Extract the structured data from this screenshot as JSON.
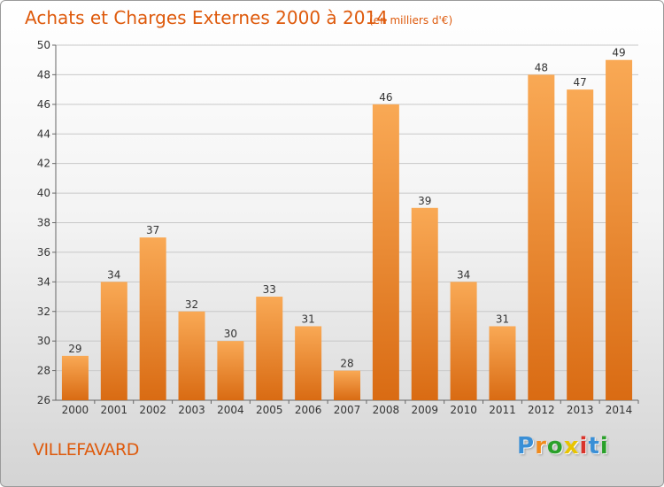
{
  "header": {
    "title": "Achats et Charges Externes 2000 à 2014",
    "subtitle": "(en milliers d'€)"
  },
  "footer": {
    "commune": "VILLEFAVARD",
    "logo_text": "Proxiti",
    "logo_colors": [
      "#3a8fd6",
      "#f08a1c",
      "#2aa02a",
      "#e8c400",
      "#d9342b",
      "#3a8fd6",
      "#2aa02a"
    ]
  },
  "colors": {
    "accent": "#de5a0c",
    "bar_top": "#f9a955",
    "bar_bottom": "#d96b13",
    "grid": "#c8c8c8"
  },
  "chart_data": {
    "type": "bar",
    "categories": [
      "2000",
      "2001",
      "2002",
      "2003",
      "2004",
      "2005",
      "2006",
      "2007",
      "2008",
      "2009",
      "2010",
      "2011",
      "2012",
      "2013",
      "2014"
    ],
    "values": [
      29,
      34,
      37,
      32,
      30,
      33,
      31,
      28,
      46,
      39,
      34,
      31,
      48,
      47,
      49
    ],
    "title": "Achats et Charges Externes 2000 à 2014",
    "ylim": [
      26,
      50
    ],
    "yticks": [
      26,
      28,
      30,
      32,
      34,
      36,
      38,
      40,
      42,
      44,
      46,
      48,
      50
    ],
    "grid": true,
    "data_labels": true
  }
}
